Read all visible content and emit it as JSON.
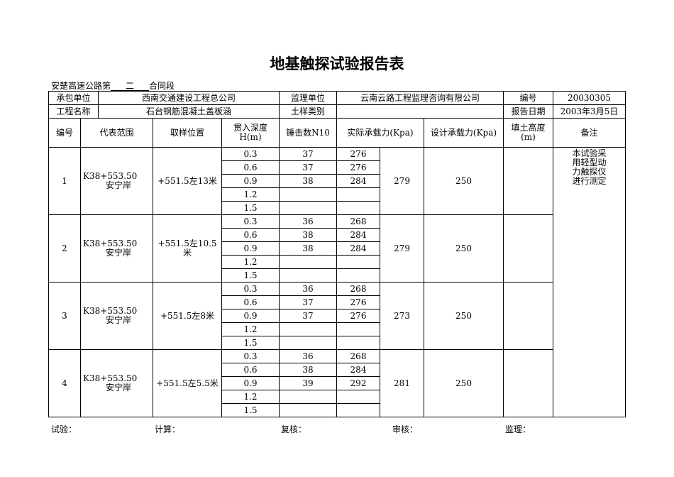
{
  "title": "地基触探试验报告表",
  "subtitle": {
    "prefix": "安楚高速公路第",
    "section": "二",
    "suffix": "合同段"
  },
  "info": {
    "contractor_label": "承包单位",
    "contractor": "西南交通建设工程总公司",
    "supervisor_label": "监理单位",
    "supervisor": "云南云路工程监理咨询有限公司",
    "number_label": "编号",
    "number": "20030305",
    "project_label": "工程名称",
    "project": "石台钢筋混凝土盖板涵",
    "soil_label": "土样类别",
    "soil": "",
    "date_label": "报告日期",
    "date": "2003年3月5日"
  },
  "headers": {
    "no": "编号",
    "range": "代表范围",
    "location": "取样位置",
    "depth": "贯入深度H(m)",
    "blows": "锤击数N10",
    "actual": "实际承载力(Kpa)",
    "design": "设计承载力(Kpa)",
    "fill": "填土高度(m)",
    "remark": "备注"
  },
  "remark": "本试验采用轻型动力触探仪进行测定",
  "groups": [
    {
      "no": "1",
      "range": "K38+553.50",
      "range2": "安宁岸",
      "location": "+551.5左13米",
      "avg": "279",
      "design": "250",
      "fill": "",
      "rows": [
        {
          "depth": "0.3",
          "blows": "37",
          "actual": "276"
        },
        {
          "depth": "0.6",
          "blows": "37",
          "actual": "276"
        },
        {
          "depth": "0.9",
          "blows": "38",
          "actual": "284"
        },
        {
          "depth": "1.2",
          "blows": "",
          "actual": ""
        },
        {
          "depth": "1.5",
          "blows": "",
          "actual": ""
        }
      ]
    },
    {
      "no": "2",
      "range": "K38+553.50",
      "range2": "安宁岸",
      "location": "+551.5左10.5米",
      "avg": "279",
      "design": "250",
      "fill": "",
      "rows": [
        {
          "depth": "0.3",
          "blows": "36",
          "actual": "268"
        },
        {
          "depth": "0.6",
          "blows": "38",
          "actual": "284"
        },
        {
          "depth": "0.9",
          "blows": "38",
          "actual": "284"
        },
        {
          "depth": "1.2",
          "blows": "",
          "actual": ""
        },
        {
          "depth": "1.5",
          "blows": "",
          "actual": ""
        }
      ]
    },
    {
      "no": "3",
      "range": "K38+553.50",
      "range2": "安宁岸",
      "location": "+551.5左8米",
      "avg": "273",
      "design": "250",
      "fill": "",
      "rows": [
        {
          "depth": "0.3",
          "blows": "36",
          "actual": "268"
        },
        {
          "depth": "0.6",
          "blows": "37",
          "actual": "276"
        },
        {
          "depth": "0.9",
          "blows": "37",
          "actual": "276"
        },
        {
          "depth": "1.2",
          "blows": "",
          "actual": ""
        },
        {
          "depth": "1.5",
          "blows": "",
          "actual": ""
        }
      ]
    },
    {
      "no": "4",
      "range": "K38+553.50",
      "range2": "安宁岸",
      "location": "+551.5左5.5米",
      "avg": "281",
      "design": "250",
      "fill": "",
      "rows": [
        {
          "depth": "0.3",
          "blows": "36",
          "actual": "268"
        },
        {
          "depth": "0.6",
          "blows": "38",
          "actual": "284"
        },
        {
          "depth": "0.9",
          "blows": "39",
          "actual": "292"
        },
        {
          "depth": "1.2",
          "blows": "",
          "actual": ""
        },
        {
          "depth": "1.5",
          "blows": "",
          "actual": ""
        }
      ]
    }
  ],
  "footer": {
    "test": "试验：",
    "calc": "计算：",
    "review": "复核：",
    "audit": "审核：",
    "supervise": "监理："
  }
}
